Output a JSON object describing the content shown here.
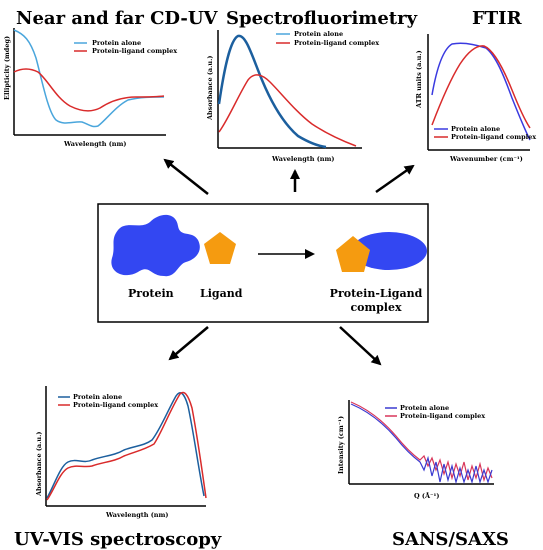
{
  "techniques": {
    "cd_uv": "Near and far CD-UV",
    "fluor": "Spectrofluorimetry",
    "ftir": "FTIR",
    "uvvis": "UV-VIS spectroscopy",
    "sans": "SANS/SAXS"
  },
  "center": {
    "protein": "Protein",
    "ligand": "Ligand",
    "complex_line1": "Protein-Ligand",
    "complex_line2": "complex"
  },
  "legend": {
    "protein_alone": "Protein alone",
    "protein_ligand": "Protein-ligand complex"
  },
  "axes": {
    "cd_y": "Ellipticity (mdeg)",
    "cd_x": "Wavelength (nm)",
    "fl_y": "Absorbance (a.u.)",
    "fl_x": "Wavelength (nm)",
    "ftir_y": "ATR units (a.u.)",
    "ftir_x": "Wavenumber (cm⁻¹)",
    "uv_y": "Absorbance (a.u.)",
    "uv_x": "Wavelength (nm)",
    "sans_y": "Intensity (cm⁻¹)",
    "sans_x": "Q (Å⁻¹)"
  },
  "colors": {
    "protein_shape": "#3347f2",
    "ligand_shape": "#f59b10",
    "blue_series": "#4aa6dc",
    "red_series": "#d92b2b",
    "dark_blue_series": "#1c5f9e",
    "ftir_blue": "#3a3ae0",
    "sans_blue": "#3a3ad0",
    "sans_red": "#d8365a"
  }
}
